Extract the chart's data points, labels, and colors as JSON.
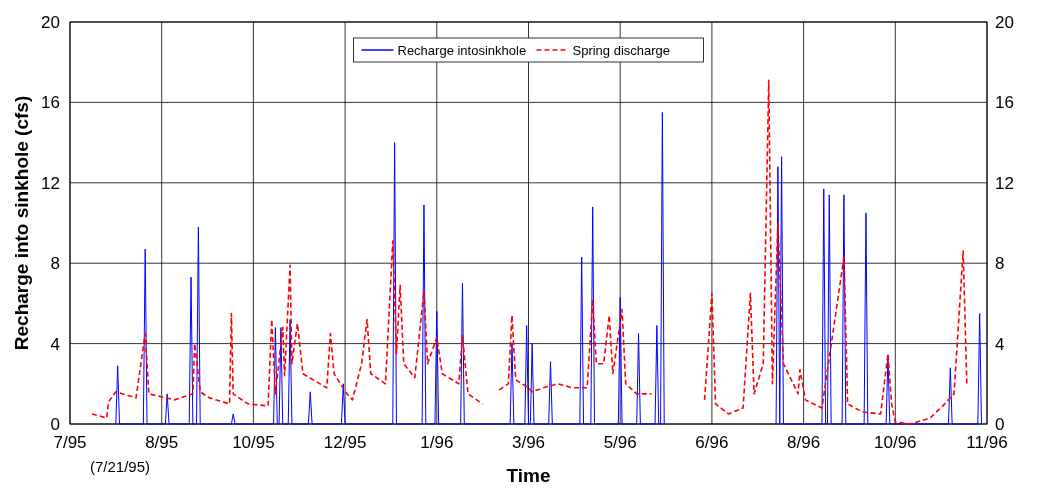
{
  "chart_data": {
    "type": "line",
    "xlabel": "Time",
    "ylabel": "Recharge into sinkhole (cfs)",
    "annotations": [
      "(7/21/95)"
    ],
    "xlim": [
      "1995-07-10",
      "1996-11-21"
    ],
    "xticks": [
      {
        "value": "1995-07-10",
        "label": "7/95"
      },
      {
        "value": "1995-08-29",
        "label": "8/95"
      },
      {
        "value": "1995-10-18",
        "label": "10/95"
      },
      {
        "value": "1995-12-07",
        "label": "12/95"
      },
      {
        "value": "1996-01-26",
        "label": "1/96"
      },
      {
        "value": "1996-03-16",
        "label": "3/96"
      },
      {
        "value": "1996-05-05",
        "label": "5/96"
      },
      {
        "value": "1996-06-24",
        "label": "6/96"
      },
      {
        "value": "1996-08-13",
        "label": "8/96"
      },
      {
        "value": "1996-10-02",
        "label": "10/96"
      },
      {
        "value": "1996-11-21",
        "label": "11/96"
      }
    ],
    "ylim": [
      0,
      20
    ],
    "yticks": [
      0,
      4,
      8,
      12,
      16,
      20
    ],
    "y2lim": [
      0,
      20
    ],
    "y2ticks": [
      0,
      4,
      8,
      12,
      16,
      20
    ],
    "grid": true,
    "legend": "top",
    "series": [
      {
        "name": "Recharge intosinkhole",
        "color": "#0000ff",
        "line_style": "solid",
        "x": [
          "1995-08-04",
          "1995-08-05",
          "1995-08-06",
          "1995-08-19",
          "1995-08-20",
          "1995-08-21",
          "1995-08-31",
          "1995-09-01",
          "1995-09-02",
          "1995-09-13",
          "1995-09-14",
          "1995-09-15",
          "1995-09-17",
          "1995-09-18",
          "1995-09-19",
          "1995-10-06",
          "1995-10-07",
          "1995-10-08",
          "1995-10-29",
          "1995-10-30",
          "1995-10-31",
          "1995-11-01",
          "1995-11-02",
          "1995-11-03",
          "1995-11-06",
          "1995-11-07",
          "1995-11-08",
          "1995-11-17",
          "1995-11-18",
          "1995-11-19",
          "1995-12-05",
          "1995-12-06",
          "1995-12-07",
          "1996-01-02",
          "1996-01-03",
          "1996-01-04",
          "1996-01-18",
          "1996-01-19",
          "1996-01-20",
          "1996-01-25",
          "1996-01-26",
          "1996-01-27",
          "1996-02-08",
          "1996-02-09",
          "1996-02-10",
          "1996-03-06",
          "1996-03-07",
          "1996-03-08",
          "1996-03-14",
          "1996-03-15",
          "1996-03-16",
          "1996-03-17",
          "1996-03-18",
          "1996-03-19",
          "1996-03-27",
          "1996-03-28",
          "1996-03-29",
          "1996-04-13",
          "1996-04-14",
          "1996-04-15",
          "1996-04-19",
          "1996-04-20",
          "1996-04-21",
          "1996-05-04",
          "1996-05-05",
          "1996-05-06",
          "1996-05-14",
          "1996-05-15",
          "1996-05-16",
          "1996-05-24",
          "1996-05-25",
          "1996-05-26",
          "1996-05-27",
          "1996-05-28",
          "1996-05-29",
          "1996-06-29",
          "1996-07-29",
          "1996-07-30",
          "1996-07-31",
          "1996-07-31",
          "1996-08-01",
          "1996-08-02",
          "1996-08-23",
          "1996-08-24",
          "1996-08-25",
          "1996-08-26",
          "1996-08-27",
          "1996-08-28",
          "1996-09-03",
          "1996-09-04",
          "1996-09-05",
          "1996-09-15",
          "1996-09-16",
          "1996-09-17",
          "1996-09-27",
          "1996-09-28",
          "1996-09-29",
          "1996-10-31",
          "1996-11-01",
          "1996-11-02",
          "1996-11-16",
          "1996-11-17",
          "1996-11-18"
        ],
        "values": [
          0,
          2.9,
          0,
          0,
          8.7,
          0,
          0,
          1.5,
          0,
          0,
          7.3,
          0,
          0,
          9.8,
          0,
          0,
          0.5,
          0,
          0,
          4.8,
          0,
          0,
          4.8,
          0,
          0,
          5.2,
          0,
          0,
          1.6,
          0,
          0,
          2,
          0,
          0,
          14,
          0,
          0,
          10.9,
          0,
          0,
          5.6,
          0,
          0,
          7,
          0,
          0,
          4,
          0,
          0,
          4.9,
          0,
          0,
          4,
          0,
          0,
          3.1,
          0,
          0,
          8.3,
          0,
          0,
          10.8,
          0,
          0,
          6.3,
          0,
          0,
          4.5,
          0,
          0,
          4.9,
          0,
          0,
          15.5,
          0,
          null,
          0,
          12.8,
          0,
          0,
          13.3,
          0,
          0,
          11.7,
          0,
          0,
          11.4,
          0,
          0,
          11.4,
          0,
          0,
          10.5,
          0,
          0,
          3.4,
          0,
          0,
          2.8,
          0,
          0,
          5.5,
          0
        ]
      },
      {
        "name": "Spring discharge",
        "color": "#ff0000",
        "line_style": "dashed",
        "x": [
          "1995-07-22",
          "1995-07-30",
          "1995-07-31",
          "1995-08-04",
          "1995-08-15",
          "1995-08-20",
          "1995-08-22",
          "1995-09-05",
          "1995-09-15",
          "1995-09-16",
          "1995-09-19",
          "1995-09-24",
          "1995-10-05",
          "1995-10-06",
          "1995-10-07",
          "1995-10-15",
          "1995-10-26",
          "1995-10-28",
          "1995-10-30",
          "1995-11-03",
          "1995-11-04",
          "1995-11-07",
          "1995-11-08",
          "1995-11-11",
          "1995-11-14",
          "1995-11-27",
          "1995-11-29",
          "1995-12-01",
          "1995-12-08",
          "1995-12-11",
          "1995-12-16",
          "1995-12-19",
          "1995-12-21",
          "1995-12-29",
          "1996-01-02",
          "1996-01-04",
          "1996-01-06",
          "1996-01-08",
          "1996-01-14",
          "1996-01-19",
          "1996-01-21",
          "1996-01-26",
          "1996-01-29",
          "1996-02-07",
          "1996-02-09",
          "1996-02-12",
          "1996-02-20",
          "1996-02-24",
          "1996-02-29",
          "1996-03-05",
          "1996-03-07",
          "1996-03-09",
          "1996-03-16",
          "1996-03-18",
          "1996-03-24",
          "1996-04-01",
          "1996-04-09",
          "1996-04-17",
          "1996-04-20",
          "1996-04-22",
          "1996-04-26",
          "1996-04-29",
          "1996-05-01",
          "1996-05-06",
          "1996-05-08",
          "1996-05-14",
          "1996-05-22",
          "1996-06-04",
          "1996-06-20",
          "1996-06-24",
          "1996-06-26",
          "1996-07-03",
          "1996-07-11",
          "1996-07-15",
          "1996-07-17",
          "1996-07-22",
          "1996-07-25",
          "1996-07-27",
          "1996-07-30",
          "1996-08-02",
          "1996-08-10",
          "1996-08-11",
          "1996-08-14",
          "1996-08-23",
          "1996-09-04",
          "1996-09-06",
          "1996-09-14",
          "1996-09-24",
          "1996-09-28",
          "1996-09-30",
          "1996-10-02",
          "1996-10-10",
          "1996-10-21",
          "1996-10-29",
          "1996-11-03",
          "1996-11-08",
          "1996-11-10"
        ],
        "values": [
          0.5,
          0.3,
          1.1,
          1.6,
          1.3,
          4.5,
          1.5,
          1.2,
          1.5,
          4,
          1.6,
          1.3,
          1,
          5.5,
          1.5,
          1,
          0.9,
          5.2,
          1.5,
          4.8,
          2.4,
          7.9,
          3,
          5,
          2.5,
          1.8,
          4.5,
          2.5,
          1.5,
          1.2,
          3,
          5.2,
          2.5,
          2,
          9.1,
          3.5,
          6.9,
          3,
          2.3,
          6.6,
          3,
          4.3,
          2.5,
          2,
          4.4,
          1.5,
          1,
          null,
          1.7,
          2,
          5.4,
          2.2,
          1.8,
          1.6,
          1.8,
          2,
          1.8,
          1.8,
          6.2,
          3,
          3,
          5.4,
          2.5,
          5.7,
          2,
          1.5,
          1.5,
          null,
          1.2,
          6.5,
          1,
          0.5,
          0.8,
          6.5,
          1.5,
          3,
          17.1,
          2,
          10,
          3,
          1.5,
          2.7,
          1.2,
          0.8,
          8.3,
          1,
          0.6,
          0.5,
          3.5,
          1,
          0.1,
          0,
          0.3,
          1,
          1.5,
          8.6,
          2
        ]
      }
    ]
  }
}
